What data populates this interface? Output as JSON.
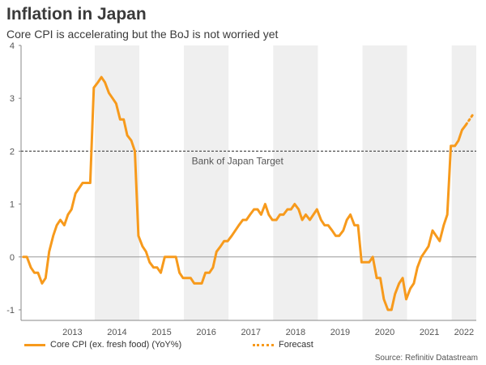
{
  "header": {
    "title": "Inflation in Japan",
    "subtitle": "Core CPI is accelerating but the BoJ is not worried yet"
  },
  "legend": {
    "actual_label": "Core CPI (ex. fresh food) (YoY%)",
    "forecast_label": "Forecast"
  },
  "source": "Source: Refinitiv Datastream",
  "colors": {
    "series": "#f79a1c",
    "band": "#efefef",
    "target_line": "#555555",
    "zero_line": "#999999"
  },
  "chart_data": {
    "type": "line",
    "ylim": [
      -1.2,
      4
    ],
    "yticks": [
      -1,
      0,
      1,
      2,
      3,
      4
    ],
    "xlim": [
      2012.35,
      2022.55
    ],
    "year_labels": [
      "2013",
      "2014",
      "2015",
      "2016",
      "2017",
      "2018",
      "2019",
      "2020",
      "2021",
      "2022"
    ],
    "shaded_years": [
      2014,
      2016,
      2018,
      2020,
      2022
    ],
    "grid": false,
    "legend_position": "bottom",
    "target": {
      "value": 2,
      "label": "Bank of Japan Target"
    },
    "series": [
      {
        "name": "Core CPI (ex. fresh food) (YoY%)",
        "style": "solid",
        "x": [
          2012.4,
          2012.48,
          2012.57,
          2012.65,
          2012.73,
          2012.82,
          2012.9,
          2012.98,
          2013.07,
          2013.15,
          2013.23,
          2013.32,
          2013.4,
          2013.48,
          2013.57,
          2013.65,
          2013.73,
          2013.82,
          2013.9,
          2013.98,
          2014.07,
          2014.15,
          2014.23,
          2014.32,
          2014.4,
          2014.48,
          2014.57,
          2014.65,
          2014.73,
          2014.82,
          2014.9,
          2014.98,
          2015.07,
          2015.15,
          2015.23,
          2015.32,
          2015.4,
          2015.48,
          2015.57,
          2015.65,
          2015.73,
          2015.82,
          2015.9,
          2015.98,
          2016.07,
          2016.15,
          2016.23,
          2016.32,
          2016.4,
          2016.48,
          2016.57,
          2016.65,
          2016.73,
          2016.82,
          2016.9,
          2016.98,
          2017.07,
          2017.15,
          2017.23,
          2017.32,
          2017.4,
          2017.48,
          2017.57,
          2017.65,
          2017.73,
          2017.82,
          2017.9,
          2017.98,
          2018.07,
          2018.15,
          2018.23,
          2018.32,
          2018.4,
          2018.48,
          2018.57,
          2018.65,
          2018.73,
          2018.82,
          2018.9,
          2018.98,
          2019.07,
          2019.15,
          2019.23,
          2019.32,
          2019.4,
          2019.48,
          2019.57,
          2019.65,
          2019.73,
          2019.82,
          2019.9,
          2019.98,
          2020.07,
          2020.15,
          2020.23,
          2020.32,
          2020.4,
          2020.48,
          2020.57,
          2020.65,
          2020.73,
          2020.82,
          2020.9,
          2020.98,
          2021.07,
          2021.15,
          2021.23,
          2021.32,
          2021.4,
          2021.48,
          2021.57,
          2021.65,
          2021.73,
          2021.82,
          2021.9,
          2021.98,
          2022.07,
          2022.15,
          2022.23,
          2022.32
        ],
        "values": [
          0,
          0,
          -0.2,
          -0.3,
          -0.3,
          -0.5,
          -0.4,
          0.1,
          0.4,
          0.6,
          0.7,
          0.6,
          0.8,
          0.9,
          1.2,
          1.3,
          1.4,
          1.4,
          1.4,
          3.2,
          3.3,
          3.4,
          3.3,
          3.1,
          3.0,
          2.9,
          2.6,
          2.6,
          2.3,
          2.2,
          2.0,
          0.4,
          0.2,
          0.1,
          -0.1,
          -0.2,
          -0.2,
          -0.3,
          0,
          0,
          0,
          0,
          -0.3,
          -0.4,
          -0.4,
          -0.4,
          -0.5,
          -0.5,
          -0.5,
          -0.3,
          -0.3,
          -0.2,
          0.1,
          0.2,
          0.3,
          0.3,
          0.4,
          0.5,
          0.6,
          0.7,
          0.7,
          0.8,
          0.9,
          0.9,
          0.8,
          1.0,
          0.8,
          0.7,
          0.7,
          0.8,
          0.8,
          0.9,
          0.9,
          1.0,
          0.9,
          0.7,
          0.8,
          0.7,
          0.8,
          0.9,
          0.7,
          0.6,
          0.6,
          0.5,
          0.4,
          0.4,
          0.5,
          0.7,
          0.8,
          0.6,
          0.6,
          -0.1,
          -0.1,
          -0.1,
          0,
          -0.4,
          -0.4,
          -0.8,
          -1.0,
          -1.0,
          -0.7,
          -0.5,
          -0.4,
          -0.8,
          -0.6,
          -0.5,
          -0.2,
          0,
          0.1,
          0.2,
          0.5,
          0.4,
          0.3,
          0.6,
          0.8,
          2.1,
          2.1,
          2.2,
          2.4,
          2.5
        ]
      },
      {
        "name": "Forecast",
        "style": "dotted",
        "x": [
          2022.32,
          2022.4,
          2022.48
        ],
        "values": [
          2.5,
          2.6,
          2.7
        ]
      }
    ]
  }
}
